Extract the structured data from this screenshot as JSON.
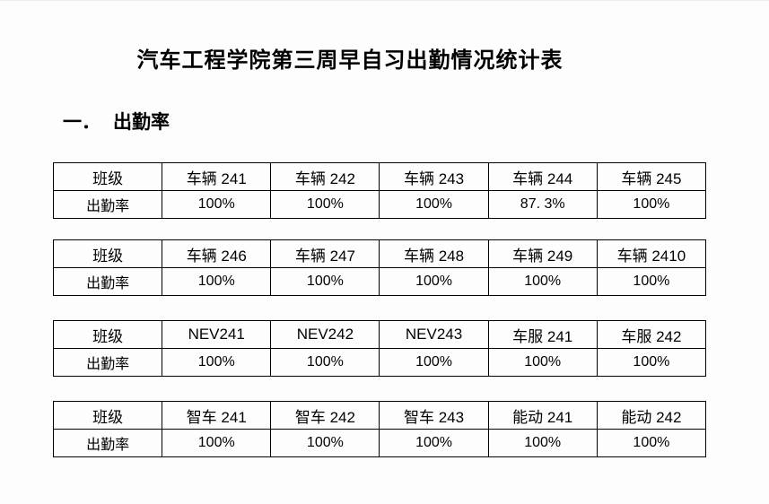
{
  "page": {
    "title": "汽车工程学院第三周早自习出勤情况统计表",
    "section": {
      "marker": "一．",
      "label": "出勤率"
    }
  },
  "tables": [
    {
      "row_header": "班级",
      "rate_header": "出勤率",
      "classes": [
        "车辆 241",
        "车辆 242",
        "车辆 243",
        "车辆 244",
        "车辆 245"
      ],
      "rates": [
        "100%",
        "100%",
        "100%",
        "87. 3%",
        "100%"
      ]
    },
    {
      "row_header": "班级",
      "rate_header": "出勤率",
      "classes": [
        "车辆 246",
        "车辆 247",
        "车辆 248",
        "车辆 249",
        "车辆 2410"
      ],
      "rates": [
        "100%",
        "100%",
        "100%",
        "100%",
        "100%"
      ]
    },
    {
      "row_header": "班级",
      "rate_header": "出勤率",
      "classes": [
        "NEV241",
        "NEV242",
        "NEV243",
        "车服 241",
        "车服 242"
      ],
      "rates": [
        "100%",
        "100%",
        "100%",
        "100%",
        "100%"
      ]
    },
    {
      "row_header": "班级",
      "rate_header": "出勤率",
      "classes": [
        "智车 241",
        "智车 242",
        "智车 243",
        "能动 241",
        "能动 242"
      ],
      "rates": [
        "100%",
        "100%",
        "100%",
        "100%",
        "100%"
      ]
    }
  ]
}
